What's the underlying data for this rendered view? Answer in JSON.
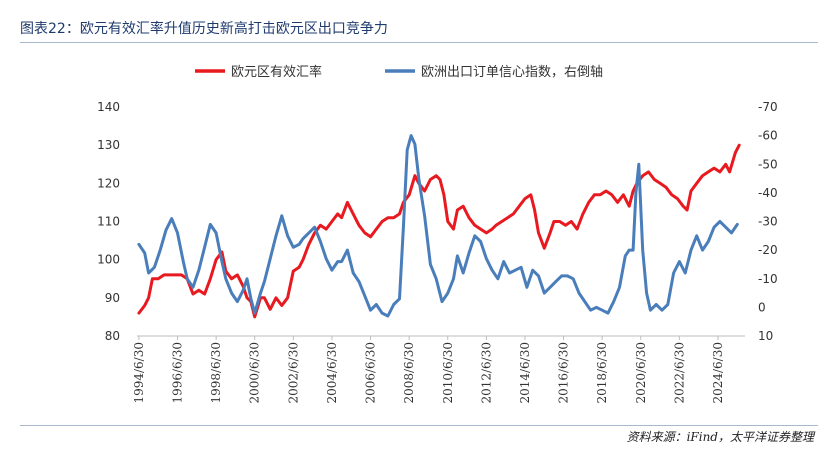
{
  "header": {
    "title": "图表22：欧元有效汇率升值历史新高打击欧元区出口竞争力"
  },
  "footer": {
    "source": "资料来源：iFind，太平洋证券整理"
  },
  "colors": {
    "series_red": "#e8191f",
    "series_blue": "#4a7ebb",
    "title": "#1f3b6e",
    "rule": "#a9b8cc"
  },
  "chart_data": {
    "type": "line",
    "title": "",
    "legend_position": "top",
    "x_ticks": [
      "1994/6/30",
      "1996/6/30",
      "1998/6/30",
      "2000/6/30",
      "2002/6/30",
      "2004/6/30",
      "2006/6/30",
      "2008/6/30",
      "2010/6/30",
      "2012/6/30",
      "2014/6/30",
      "2016/6/30",
      "2018/6/30",
      "2020/6/30",
      "2022/6/30",
      "2024/6/30"
    ],
    "x_tick_years": [
      1994,
      1996,
      1998,
      2000,
      2002,
      2004,
      2006,
      2008,
      2010,
      2012,
      2014,
      2016,
      2018,
      2020,
      2022,
      2024
    ],
    "x_range": [
      1994.4,
      2025.9
    ],
    "left_axis": {
      "ylim": [
        80,
        140
      ],
      "ticks": [
        80,
        90,
        100,
        110,
        120,
        130,
        140
      ]
    },
    "right_axis": {
      "ylim": [
        10,
        -70
      ],
      "inverted": true,
      "ticks": [
        10,
        0,
        -10,
        -20,
        -30,
        -40,
        -50,
        -60,
        -70
      ]
    },
    "series": [
      {
        "name": "欧元区有效汇率",
        "axis": "left",
        "color": "#e8191f",
        "x": [
          1994.5,
          1994.8,
          1995.0,
          1995.2,
          1995.5,
          1995.8,
          1996.0,
          1996.3,
          1996.7,
          1997.0,
          1997.3,
          1997.6,
          1997.9,
          1998.2,
          1998.5,
          1998.8,
          1999.0,
          1999.3,
          1999.6,
          1999.9,
          2000.1,
          2000.3,
          2000.5,
          2000.8,
          2001.0,
          2001.3,
          2001.6,
          2001.9,
          2002.2,
          2002.5,
          2002.8,
          2003.0,
          2003.3,
          2003.6,
          2003.9,
          2004.2,
          2004.5,
          2004.8,
          2005.0,
          2005.3,
          2005.6,
          2005.9,
          2006.2,
          2006.5,
          2006.8,
          2007.1,
          2007.4,
          2007.7,
          2008.0,
          2008.2,
          2008.5,
          2008.8,
          2009.0,
          2009.3,
          2009.6,
          2009.9,
          2010.1,
          2010.3,
          2010.5,
          2010.8,
          2011.0,
          2011.3,
          2011.6,
          2011.9,
          2012.2,
          2012.5,
          2012.8,
          2013.0,
          2013.3,
          2013.6,
          2013.9,
          2014.2,
          2014.5,
          2014.8,
          2015.0,
          2015.2,
          2015.5,
          2015.8,
          2016.0,
          2016.3,
          2016.6,
          2016.9,
          2017.2,
          2017.5,
          2017.8,
          2018.1,
          2018.4,
          2018.7,
          2019.0,
          2019.3,
          2019.6,
          2019.9,
          2020.1,
          2020.3,
          2020.6,
          2020.9,
          2021.2,
          2021.5,
          2021.8,
          2022.1,
          2022.4,
          2022.7,
          2022.9,
          2023.1,
          2023.4,
          2023.7,
          2024.0,
          2024.3,
          2024.6,
          2024.9,
          2025.1,
          2025.4,
          2025.6
        ],
        "values": [
          86,
          88,
          90,
          95,
          95,
          96,
          96,
          96,
          96,
          95,
          91,
          92,
          91,
          95,
          100,
          102,
          97,
          95,
          96,
          93,
          90,
          89,
          85,
          90,
          90,
          87,
          90,
          88,
          90,
          97,
          98,
          100,
          104,
          107,
          109,
          108,
          110,
          112,
          111,
          115,
          112,
          109,
          107,
          106,
          108,
          110,
          111,
          111,
          112,
          115,
          117,
          122,
          120,
          118,
          121,
          122,
          121,
          117,
          110,
          108,
          113,
          114,
          111,
          109,
          108,
          107,
          108,
          109,
          110,
          111,
          112,
          114,
          116,
          117,
          113,
          107,
          103,
          107,
          110,
          110,
          109,
          110,
          108,
          112,
          115,
          117,
          117,
          118,
          117,
          115,
          117,
          114,
          118,
          120,
          122,
          123,
          121,
          120,
          119,
          117,
          116,
          114,
          113,
          118,
          120,
          122,
          123,
          124,
          123,
          125,
          123,
          128,
          130
        ]
      },
      {
        "name": "欧洲出口订单信心指数，右倒轴",
        "axis": "right",
        "color": "#4a7ebb",
        "x": [
          1994.5,
          1994.8,
          1995.0,
          1995.3,
          1995.6,
          1995.9,
          1996.2,
          1996.5,
          1996.8,
          1997.0,
          1997.3,
          1997.6,
          1997.9,
          1998.2,
          1998.5,
          1998.8,
          1999.0,
          1999.3,
          1999.6,
          1999.9,
          2000.1,
          2000.3,
          2000.5,
          2000.8,
          2001.0,
          2001.3,
          2001.6,
          2001.9,
          2002.2,
          2002.5,
          2002.8,
          2003.0,
          2003.3,
          2003.6,
          2003.9,
          2004.2,
          2004.5,
          2004.8,
          2005.0,
          2005.3,
          2005.6,
          2005.9,
          2006.2,
          2006.5,
          2006.8,
          2007.1,
          2007.4,
          2007.7,
          2008.0,
          2008.2,
          2008.4,
          2008.6,
          2008.8,
          2009.0,
          2009.3,
          2009.6,
          2009.9,
          2010.2,
          2010.5,
          2010.8,
          2011.0,
          2011.3,
          2011.6,
          2011.9,
          2012.2,
          2012.5,
          2012.8,
          2013.1,
          2013.4,
          2013.7,
          2014.0,
          2014.3,
          2014.6,
          2014.9,
          2015.2,
          2015.5,
          2015.8,
          2016.1,
          2016.4,
          2016.7,
          2017.0,
          2017.3,
          2017.6,
          2017.9,
          2018.2,
          2018.5,
          2018.8,
          2019.1,
          2019.4,
          2019.7,
          2019.9,
          2020.1,
          2020.25,
          2020.4,
          2020.6,
          2020.8,
          2021.0,
          2021.3,
          2021.6,
          2021.9,
          2022.2,
          2022.5,
          2022.8,
          2023.1,
          2023.4,
          2023.7,
          2024.0,
          2024.3,
          2024.6,
          2024.9,
          2025.2,
          2025.5
        ],
        "values": [
          -22,
          -19,
          -12,
          -14,
          -20,
          -27,
          -31,
          -26,
          -16,
          -10,
          -7,
          -13,
          -21,
          -29,
          -26,
          -16,
          -10,
          -5,
          -2,
          -6,
          -10,
          -3,
          2,
          -5,
          -9,
          -17,
          -25,
          -32,
          -25,
          -21,
          -22,
          -24,
          -26,
          -28,
          -23,
          -17,
          -13,
          -16,
          -16,
          -20,
          -12,
          -9,
          -4,
          1,
          -1,
          2,
          3,
          -1,
          -3,
          -28,
          -55,
          -60,
          -57,
          -45,
          -32,
          -15,
          -10,
          -2,
          -5,
          -10,
          -18,
          -12,
          -19,
          -25,
          -23,
          -17,
          -13,
          -10,
          -16,
          -12,
          -13,
          -14,
          -7,
          -13,
          -11,
          -5,
          -7,
          -9,
          -11,
          -11,
          -10,
          -5,
          -2,
          1,
          0,
          1,
          2,
          -2,
          -7,
          -18,
          -20,
          -20,
          -40,
          -50,
          -20,
          -5,
          1,
          -1,
          1,
          -1,
          -12,
          -16,
          -12,
          -20,
          -25,
          -20,
          -23,
          -28,
          -30,
          -28,
          -26,
          -29
        ]
      }
    ]
  }
}
